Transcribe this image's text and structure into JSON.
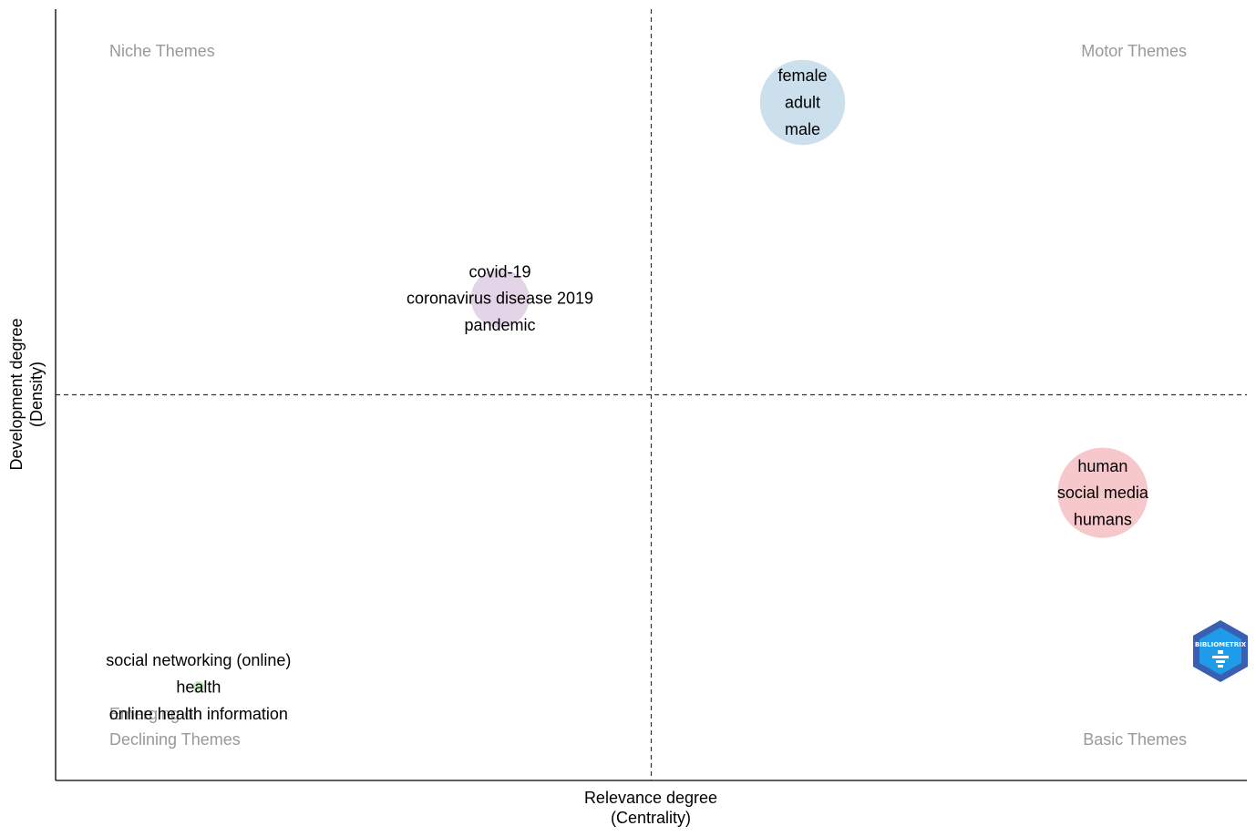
{
  "chart_data": {
    "type": "scatter",
    "title": "",
    "xlabel": [
      "Relevance degree",
      "(Centrality)"
    ],
    "ylabel": [
      "Development degree",
      "(Density)"
    ],
    "xlim": [
      0,
      1
    ],
    "ylim": [
      0,
      1
    ],
    "x_median": 0.5,
    "y_median": 0.5,
    "grid": false,
    "quadrants": {
      "top_left": "Niche Themes",
      "top_right": "Motor Themes",
      "bottom_right": "Basic Themes",
      "bottom_left": [
        "Emerging or",
        "Declining Themes"
      ]
    },
    "clusters": [
      {
        "words": [
          "female",
          "adult",
          "male"
        ],
        "x": 0.627,
        "y": 0.879,
        "size": 0.85,
        "color": "#c6dbea"
      },
      {
        "words": [
          "covid-19",
          "coronavirus disease 2019",
          "pandemic"
        ],
        "x": 0.373,
        "y": 0.625,
        "size": 0.58,
        "color": "#e1cfe6"
      },
      {
        "words": [
          "human",
          "social media",
          "humans"
        ],
        "x": 0.879,
        "y": 0.373,
        "size": 0.9,
        "color": "#f5c2c7"
      },
      {
        "words": [
          "social networking (online)",
          "health",
          "online health information"
        ],
        "x": 0.12,
        "y": 0.121,
        "size": 0.12,
        "color": "#c8e6c2"
      }
    ]
  },
  "logo": {
    "text": "BIBLIOMETRIX",
    "outer_color": "#3a5fb0",
    "inner_color": "#1e9be9"
  }
}
